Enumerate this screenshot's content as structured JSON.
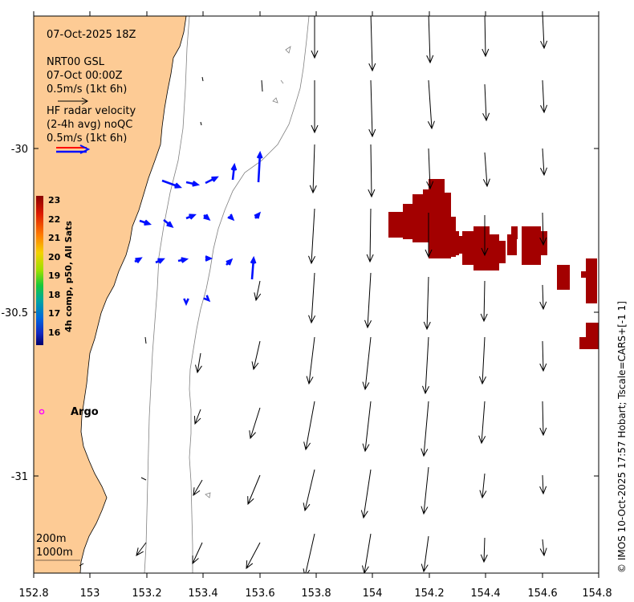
{
  "header": {
    "date_title": "07-Oct-2025 18Z",
    "model_name": "NRT00 GSL",
    "model_time": "07-Oct 00:00Z",
    "model_scale": "0.5m/s (1kt 6h)",
    "radar_line1": "HF radar velocity",
    "radar_line2": "(2-4h avg) noQC",
    "radar_scale": "0.5m/s (1kt 6h)"
  },
  "colorbar": {
    "title": "4h comp, p50, All Sats",
    "ticks": [
      "23",
      "22",
      "21",
      "20",
      "19",
      "18",
      "17",
      "16"
    ]
  },
  "axes": {
    "x_ticks": [
      "152.8",
      "153",
      "153.2",
      "153.4",
      "153.6",
      "153.8",
      "154",
      "154.2",
      "154.4",
      "154.6",
      "154.8"
    ],
    "y_ticks": [
      "-30",
      "-30.5",
      "-31"
    ]
  },
  "argo": {
    "label": "Argo"
  },
  "isobaths": {
    "line1": "200m",
    "line2": "1000m"
  },
  "credit": {
    "text": "© IMOS 10-Oct-2025 17:57 Hobart; Tscale=CARS+[-1 1]"
  },
  "colors": {
    "land": "#fdcb95",
    "sst_patch": "#a30000",
    "radar_arrows": "#0010ff",
    "argo_marker": "#ff00ff",
    "isobath_lines": "#808080"
  },
  "icon_names": [
    "current-arrow-icon",
    "radar-arrow-icon",
    "argo-float-icon"
  ]
}
